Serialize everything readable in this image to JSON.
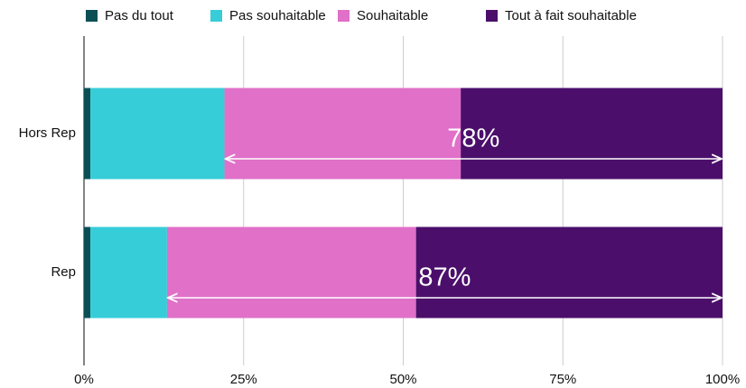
{
  "chart_data": {
    "type": "stacked_bar_horizontal",
    "categories": [
      "Hors Rep",
      "Rep"
    ],
    "series": [
      {
        "name": "Pas du tout",
        "color": "#0b4f55",
        "values": [
          1,
          1
        ]
      },
      {
        "name": "Pas souhaitable",
        "color": "#36cdd9",
        "values": [
          21,
          12
        ]
      },
      {
        "name": "Souhaitable",
        "color": "#e070c8",
        "values": [
          37,
          39
        ]
      },
      {
        "name": "Tout à fait souhaitable",
        "color": "#4b0f6b",
        "values": [
          41,
          48
        ]
      }
    ],
    "annotations": [
      {
        "value": 78,
        "label": "78%"
      },
      {
        "value": 87,
        "label": "87%"
      }
    ],
    "xlim": [
      0,
      100
    ],
    "xticks": [
      {
        "value": 0,
        "label": "0%"
      },
      {
        "value": 25,
        "label": "25%"
      },
      {
        "value": 50,
        "label": "50%"
      },
      {
        "value": 75,
        "label": "75%"
      },
      {
        "value": 100,
        "label": "100%"
      }
    ],
    "grid": true,
    "legend": "top"
  }
}
